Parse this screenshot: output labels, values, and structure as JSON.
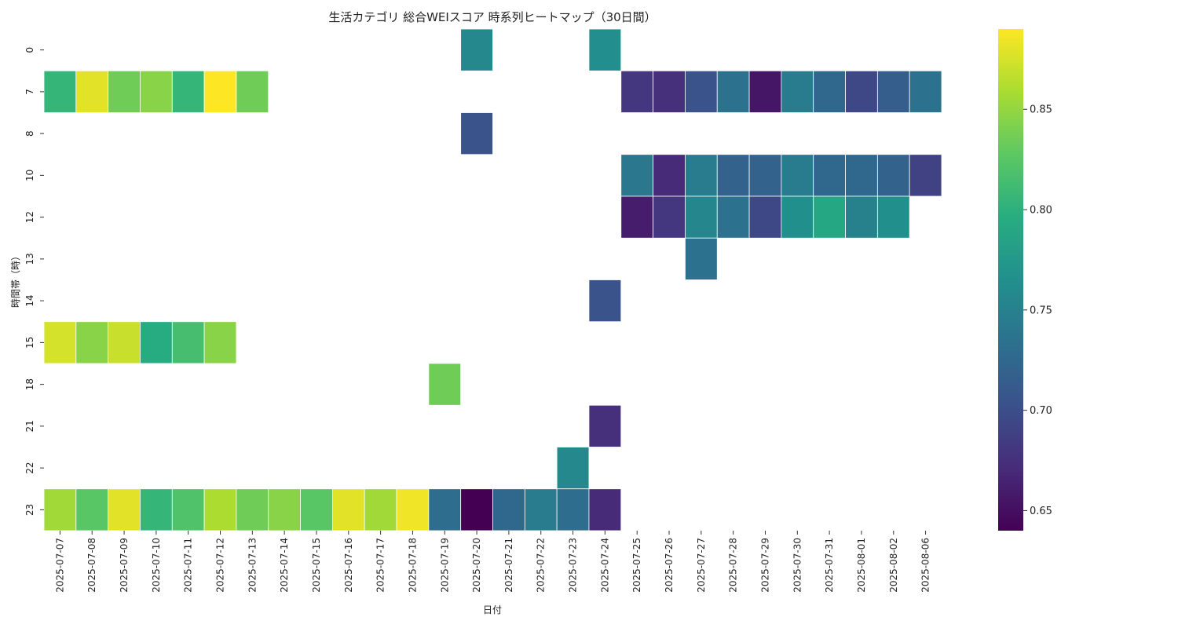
{
  "chart_data": {
    "type": "heatmap",
    "title": "生活カテゴリ 総合WEIスコア 時系列ヒートマップ（30日間）",
    "xlabel": "日付",
    "ylabel": "時間帯（時）",
    "x_categories": [
      "2025-07-07",
      "2025-07-08",
      "2025-07-09",
      "2025-07-10",
      "2025-07-11",
      "2025-07-12",
      "2025-07-13",
      "2025-07-14",
      "2025-07-15",
      "2025-07-16",
      "2025-07-17",
      "2025-07-18",
      "2025-07-19",
      "2025-07-20",
      "2025-07-21",
      "2025-07-22",
      "2025-07-23",
      "2025-07-24",
      "2025-07-25",
      "2025-07-26",
      "2025-07-27",
      "2025-07-28",
      "2025-07-29",
      "2025-07-30",
      "2025-07-31",
      "2025-08-01",
      "2025-08-02",
      "2025-08-06"
    ],
    "y_categories": [
      "0",
      "7",
      "8",
      "10",
      "12",
      "13",
      "14",
      "15",
      "18",
      "21",
      "22",
      "23"
    ],
    "values": [
      [
        null,
        null,
        null,
        null,
        null,
        null,
        null,
        null,
        null,
        null,
        null,
        null,
        null,
        0.757,
        null,
        null,
        null,
        0.763,
        null,
        null,
        null,
        null,
        null,
        null,
        null,
        null,
        null,
        null
      ],
      [
        0.805,
        0.88,
        0.835,
        0.845,
        0.805,
        0.89,
        0.835,
        null,
        null,
        null,
        null,
        null,
        null,
        null,
        null,
        null,
        null,
        null,
        0.68,
        0.675,
        0.705,
        0.735,
        0.655,
        0.745,
        0.725,
        0.695,
        0.715,
        0.735
      ],
      [
        null,
        null,
        null,
        null,
        null,
        null,
        null,
        null,
        null,
        null,
        null,
        null,
        null,
        0.705,
        null,
        null,
        null,
        null,
        null,
        null,
        null,
        null,
        null,
        null,
        null,
        null,
        null,
        null
      ],
      [
        null,
        null,
        null,
        null,
        null,
        null,
        null,
        null,
        null,
        null,
        null,
        null,
        null,
        null,
        null,
        null,
        null,
        null,
        0.74,
        0.67,
        0.745,
        0.72,
        0.72,
        0.745,
        0.725,
        0.725,
        0.72,
        0.69
      ],
      [
        null,
        null,
        null,
        null,
        null,
        null,
        null,
        null,
        null,
        null,
        null,
        null,
        null,
        null,
        null,
        null,
        null,
        null,
        0.66,
        0.68,
        0.755,
        0.735,
        0.695,
        0.765,
        0.79,
        0.75,
        0.765,
        null
      ],
      [
        null,
        null,
        null,
        null,
        null,
        null,
        null,
        null,
        null,
        null,
        null,
        null,
        null,
        null,
        null,
        null,
        null,
        null,
        null,
        null,
        0.735,
        null,
        null,
        null,
        null,
        null,
        null,
        null
      ],
      [
        null,
        null,
        null,
        null,
        null,
        null,
        null,
        null,
        null,
        null,
        null,
        null,
        null,
        null,
        null,
        null,
        null,
        0.705,
        null,
        null,
        null,
        null,
        null,
        null,
        null,
        null,
        null,
        null
      ],
      [
        0.875,
        0.845,
        0.87,
        0.795,
        0.815,
        0.845,
        null,
        null,
        null,
        null,
        null,
        null,
        null,
        null,
        null,
        null,
        null,
        null,
        null,
        null,
        null,
        null,
        null,
        null,
        null,
        null,
        null,
        null
      ],
      [
        null,
        null,
        null,
        null,
        null,
        null,
        null,
        null,
        null,
        null,
        null,
        null,
        0.835,
        null,
        null,
        null,
        null,
        null,
        null,
        null,
        null,
        null,
        null,
        null,
        null,
        null,
        null,
        null
      ],
      [
        null,
        null,
        null,
        null,
        null,
        null,
        null,
        null,
        null,
        null,
        null,
        null,
        null,
        null,
        null,
        null,
        null,
        0.675,
        null,
        null,
        null,
        null,
        null,
        null,
        null,
        null,
        null,
        null
      ],
      [
        null,
        null,
        null,
        null,
        null,
        null,
        null,
        null,
        null,
        null,
        null,
        null,
        null,
        null,
        null,
        null,
        0.757,
        null,
        null,
        null,
        null,
        null,
        null,
        null,
        null,
        null,
        null,
        null
      ],
      [
        0.855,
        0.825,
        0.88,
        0.805,
        0.82,
        0.86,
        0.835,
        0.845,
        0.825,
        0.88,
        0.855,
        0.885,
        0.73,
        0.64,
        0.725,
        0.745,
        0.73,
        0.67,
        null,
        null,
        null,
        null,
        null,
        null,
        null,
        null,
        null,
        null
      ]
    ],
    "vmin": 0.64,
    "vmax": 0.89,
    "colormap": "viridis",
    "colorbar_ticks": [
      "0.65",
      "0.70",
      "0.75",
      "0.80",
      "0.85"
    ],
    "colorbar_tick_values": [
      0.65,
      0.7,
      0.75,
      0.8,
      0.85
    ],
    "grid": false,
    "cell_border_color": "#ffffff"
  }
}
